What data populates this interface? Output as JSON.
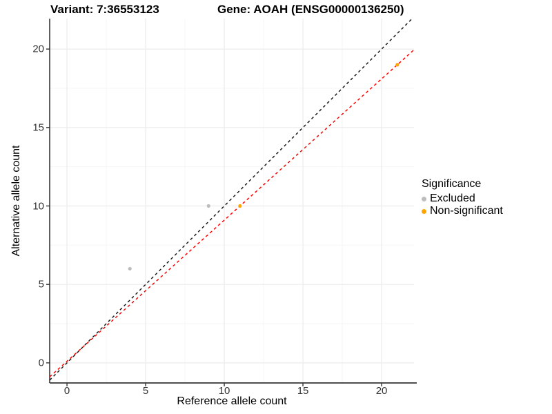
{
  "titles": {
    "left": "Variant: 7:36553123",
    "right": "Gene: AOAH (ENSG00000136250)"
  },
  "chart_data": {
    "type": "scatter",
    "xlabel": "Reference allele count",
    "ylabel": "Alternative allele count",
    "xlim": [
      -1.1,
      22.06
    ],
    "ylim": [
      -1.28,
      21.94
    ],
    "xticks": [
      0,
      5,
      10,
      15,
      20
    ],
    "yticks": [
      0,
      5,
      10,
      15,
      20
    ],
    "minor_xticks": [
      2.5,
      7.5,
      12.5,
      17.5
    ],
    "minor_yticks": [
      2.5,
      7.5,
      12.5,
      17.5
    ],
    "grid": true,
    "series": [
      {
        "name": "Excluded",
        "color": "#bdbdbd",
        "points": [
          [
            4,
            6
          ],
          [
            9,
            10
          ]
        ]
      },
      {
        "name": "Non-significant",
        "color": "#ffa500",
        "points": [
          [
            11,
            10
          ],
          [
            21,
            19
          ]
        ]
      }
    ],
    "lines": [
      {
        "name": "identity-line",
        "color": "#1a1a1a",
        "slope": 1,
        "intercept": 0,
        "dash": "4 4"
      },
      {
        "name": "fit-line",
        "color": "#ff0000",
        "slope": 0.9,
        "intercept": 0.1,
        "dash": "4 4"
      }
    ],
    "legend": {
      "title": "Significance",
      "position": "right",
      "items": [
        {
          "label": "Excluded",
          "color": "#bdbdbd"
        },
        {
          "label": "Non-significant",
          "color": "#ffa500"
        }
      ]
    }
  },
  "colors": {
    "major_grid": "#ebebeb",
    "minor_grid": "#f6f6f6",
    "x_axis_line": "#4d4d4d",
    "y_axis_line": "#1a1a1a",
    "tick_mark": "#333333"
  }
}
